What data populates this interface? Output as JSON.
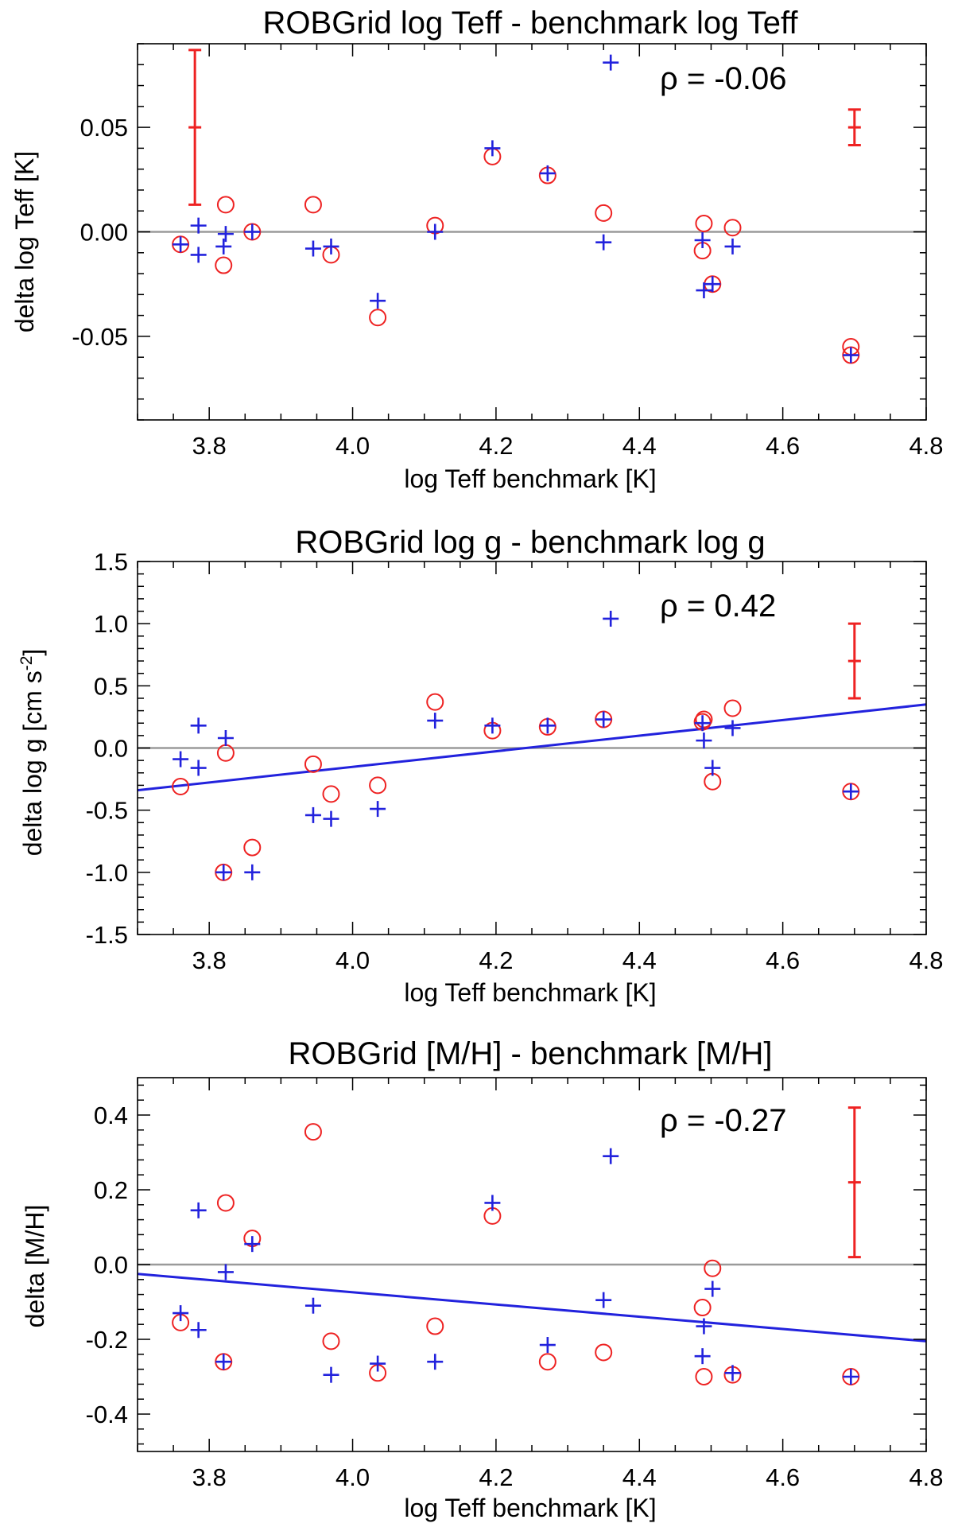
{
  "chart_data": [
    {
      "type": "scatter",
      "title": "ROBGrid log Teff - benchmark log Teff",
      "xlabel": "log Teff benchmark [K]",
      "ylabel": "delta log Teff [K]",
      "ylabel_sup": "",
      "ylabel_tail": "",
      "xlim": [
        3.7,
        4.8
      ],
      "ylim": [
        -0.09,
        0.09
      ],
      "xticks": [
        3.8,
        4.0,
        4.2,
        4.4,
        4.6,
        4.8
      ],
      "xtick_labels": [
        "3.8",
        "4.0",
        "4.2",
        "4.4",
        "4.6",
        "4.8"
      ],
      "yticks": [
        -0.05,
        0.0,
        0.05
      ],
      "ytick_labels": [
        "-0.05",
        "0.00",
        "0.05"
      ],
      "zero_line": 0,
      "rho_label": "ρ = -0.06",
      "fit_line": null,
      "error_bars": [
        {
          "x": 3.78,
          "y": 0.05,
          "err": 0.037
        },
        {
          "x": 4.7,
          "y": 0.05,
          "err": 0.0085
        }
      ],
      "series": [
        {
          "name": "circles",
          "marker": "circle",
          "color": "#ee2222",
          "points": [
            [
              3.76,
              -0.006
            ],
            [
              3.82,
              -0.016
            ],
            [
              3.823,
              0.013
            ],
            [
              3.86,
              0.0
            ],
            [
              3.945,
              0.013
            ],
            [
              3.97,
              -0.011
            ],
            [
              4.035,
              -0.041
            ],
            [
              4.115,
              0.003
            ],
            [
              4.195,
              0.036
            ],
            [
              4.272,
              0.027
            ],
            [
              4.35,
              0.009
            ],
            [
              4.488,
              -0.009
            ],
            [
              4.49,
              0.004
            ],
            [
              4.502,
              -0.025
            ],
            [
              4.53,
              0.002
            ],
            [
              4.695,
              -0.055
            ],
            [
              4.695,
              -0.059
            ]
          ]
        },
        {
          "name": "plus",
          "marker": "plus",
          "color": "#2222dd",
          "points": [
            [
              3.76,
              -0.006
            ],
            [
              3.785,
              0.003
            ],
            [
              3.785,
              -0.011
            ],
            [
              3.82,
              -0.007
            ],
            [
              3.823,
              -0.001
            ],
            [
              3.86,
              0.0
            ],
            [
              3.945,
              -0.008
            ],
            [
              3.97,
              -0.007
            ],
            [
              4.035,
              -0.033
            ],
            [
              4.115,
              0.0
            ],
            [
              4.195,
              0.04
            ],
            [
              4.272,
              0.028
            ],
            [
              4.35,
              -0.005
            ],
            [
              4.36,
              0.081
            ],
            [
              4.488,
              -0.004
            ],
            [
              4.49,
              -0.028
            ],
            [
              4.502,
              -0.025
            ],
            [
              4.53,
              -0.007
            ],
            [
              4.695,
              -0.059
            ]
          ]
        }
      ]
    },
    {
      "type": "scatter",
      "title": "ROBGrid log g - benchmark log g",
      "xlabel": "log Teff benchmark [K]",
      "ylabel": "delta log g [cm s",
      "ylabel_sup": "-2",
      "ylabel_tail": "]",
      "xlim": [
        3.7,
        4.8
      ],
      "ylim": [
        -1.5,
        1.5
      ],
      "xticks": [
        3.8,
        4.0,
        4.2,
        4.4,
        4.6,
        4.8
      ],
      "xtick_labels": [
        "3.8",
        "4.0",
        "4.2",
        "4.4",
        "4.6",
        "4.8"
      ],
      "yticks": [
        -1.5,
        -1.0,
        -0.5,
        0.0,
        0.5,
        1.0,
        1.5
      ],
      "ytick_labels": [
        "-1.5",
        "-1.0",
        "-0.5",
        "0.0",
        "0.5",
        "1.0",
        "1.5"
      ],
      "zero_line": 0,
      "rho_label": "ρ =  0.42",
      "fit_line": {
        "x": [
          3.7,
          4.8
        ],
        "y": [
          -0.34,
          0.35
        ]
      },
      "error_bars": [
        {
          "x": 4.7,
          "y": 0.7,
          "err": 0.3
        }
      ],
      "series": [
        {
          "name": "circles",
          "marker": "circle",
          "color": "#ee2222",
          "points": [
            [
              3.76,
              -0.31
            ],
            [
              3.82,
              -1.0
            ],
            [
              3.823,
              -0.04
            ],
            [
              3.86,
              -0.8
            ],
            [
              3.945,
              -0.13
            ],
            [
              3.97,
              -0.37
            ],
            [
              4.035,
              -0.3
            ],
            [
              4.115,
              0.37
            ],
            [
              4.195,
              0.14
            ],
            [
              4.272,
              0.17
            ],
            [
              4.35,
              0.23
            ],
            [
              4.488,
              0.21
            ],
            [
              4.49,
              0.23
            ],
            [
              4.502,
              -0.27
            ],
            [
              4.53,
              0.32
            ],
            [
              4.695,
              -0.35
            ]
          ]
        },
        {
          "name": "plus",
          "marker": "plus",
          "color": "#2222dd",
          "points": [
            [
              3.76,
              -0.09
            ],
            [
              3.785,
              0.18
            ],
            [
              3.785,
              -0.16
            ],
            [
              3.82,
              -1.0
            ],
            [
              3.823,
              0.08
            ],
            [
              3.86,
              -1.0
            ],
            [
              3.945,
              -0.54
            ],
            [
              3.97,
              -0.57
            ],
            [
              4.035,
              -0.49
            ],
            [
              4.115,
              0.22
            ],
            [
              4.195,
              0.18
            ],
            [
              4.272,
              0.18
            ],
            [
              4.35,
              0.23
            ],
            [
              4.36,
              1.04
            ],
            [
              4.488,
              0.2
            ],
            [
              4.49,
              0.06
            ],
            [
              4.502,
              -0.16
            ],
            [
              4.53,
              0.16
            ],
            [
              4.695,
              -0.35
            ]
          ]
        }
      ]
    },
    {
      "type": "scatter",
      "title": "ROBGrid [M/H] - benchmark [M/H]",
      "xlabel": "log Teff benchmark [K]",
      "ylabel": "delta [M/H]",
      "ylabel_sup": "",
      "ylabel_tail": "",
      "xlim": [
        3.7,
        4.8
      ],
      "ylim": [
        -0.5,
        0.5
      ],
      "xticks": [
        3.8,
        4.0,
        4.2,
        4.4,
        4.6,
        4.8
      ],
      "xtick_labels": [
        "3.8",
        "4.0",
        "4.2",
        "4.4",
        "4.6",
        "4.8"
      ],
      "yticks": [
        -0.4,
        -0.2,
        0.0,
        0.2,
        0.4
      ],
      "ytick_labels": [
        "-0.4",
        "-0.2",
        "0.0",
        "0.2",
        "0.4"
      ],
      "zero_line": 0,
      "rho_label": "ρ = -0.27",
      "fit_line": {
        "x": [
          3.7,
          4.8
        ],
        "y": [
          -0.025,
          -0.205
        ]
      },
      "error_bars": [
        {
          "x": 4.7,
          "y": 0.22,
          "err": 0.2
        }
      ],
      "series": [
        {
          "name": "circles",
          "marker": "circle",
          "color": "#ee2222",
          "points": [
            [
              3.76,
              -0.155
            ],
            [
              3.82,
              -0.26
            ],
            [
              3.823,
              0.165
            ],
            [
              3.86,
              0.07
            ],
            [
              3.945,
              0.355
            ],
            [
              3.97,
              -0.205
            ],
            [
              4.035,
              -0.29
            ],
            [
              4.115,
              -0.165
            ],
            [
              4.195,
              0.13
            ],
            [
              4.272,
              -0.26
            ],
            [
              4.35,
              -0.235
            ],
            [
              4.488,
              -0.115
            ],
            [
              4.49,
              -0.3
            ],
            [
              4.502,
              -0.01
            ],
            [
              4.53,
              -0.295
            ],
            [
              4.695,
              -0.3
            ]
          ]
        },
        {
          "name": "plus",
          "marker": "plus",
          "color": "#2222dd",
          "points": [
            [
              3.76,
              -0.13
            ],
            [
              3.785,
              0.145
            ],
            [
              3.785,
              -0.175
            ],
            [
              3.82,
              -0.26
            ],
            [
              3.823,
              -0.02
            ],
            [
              3.86,
              0.055
            ],
            [
              3.945,
              -0.11
            ],
            [
              3.97,
              -0.295
            ],
            [
              4.035,
              -0.265
            ],
            [
              4.115,
              -0.26
            ],
            [
              4.195,
              0.165
            ],
            [
              4.272,
              -0.215
            ],
            [
              4.35,
              -0.095
            ],
            [
              4.36,
              0.29
            ],
            [
              4.488,
              -0.245
            ],
            [
              4.49,
              -0.165
            ],
            [
              4.502,
              -0.065
            ],
            [
              4.53,
              -0.29
            ],
            [
              4.695,
              -0.3
            ]
          ]
        }
      ]
    }
  ]
}
